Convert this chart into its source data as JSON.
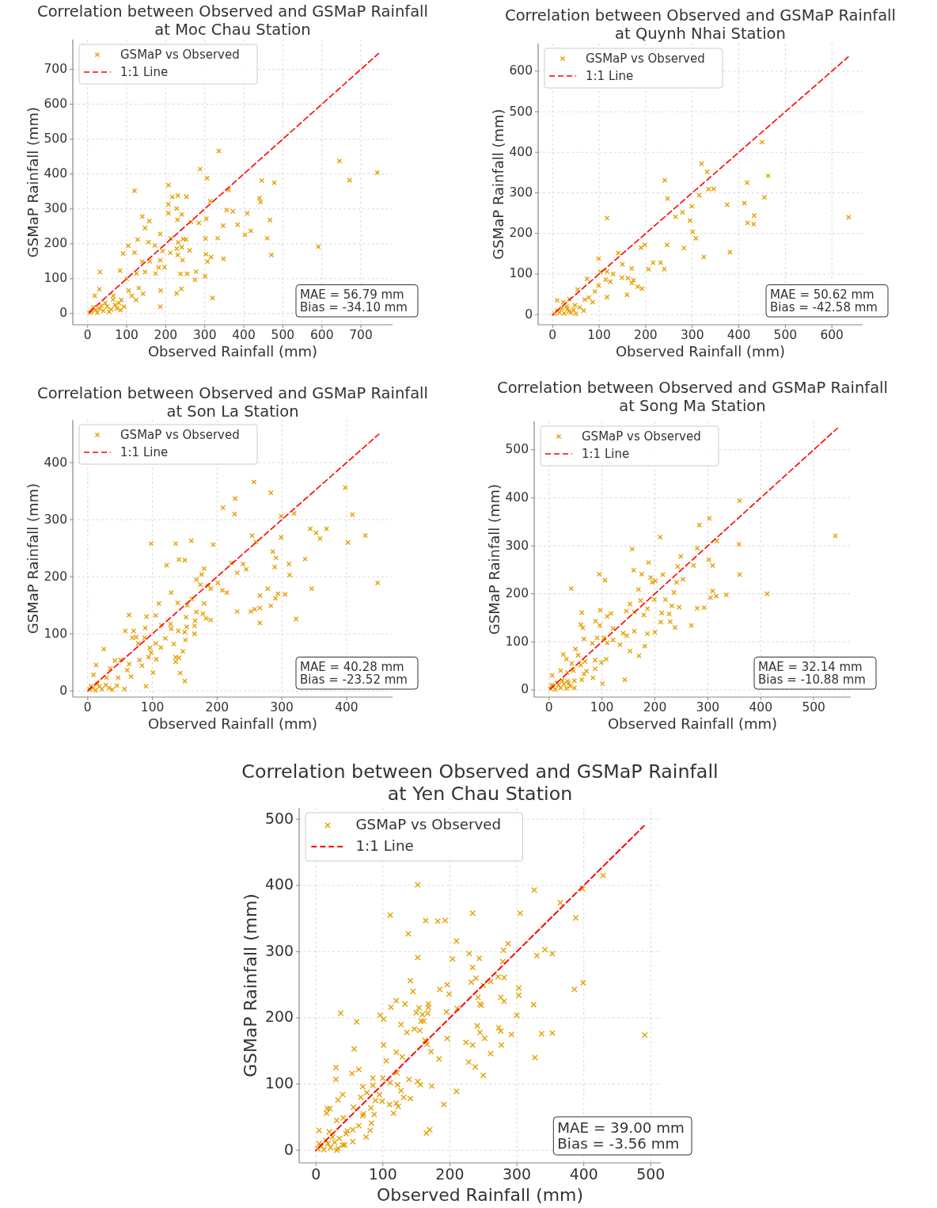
{
  "chart_data": [
    {
      "type": "scatter",
      "title": "Correlation between Observed and GSMaP Rainfall\nat Moc Chau Station",
      "xlabel": "Observed Rainfall (mm)",
      "ylabel": "GSMaP Rainfall (mm)",
      "xlim": [
        -38,
        781
      ],
      "ylim": [
        -32,
        785
      ],
      "xticks": [
        0,
        100,
        200,
        300,
        400,
        500,
        600,
        700
      ],
      "yticks": [
        0,
        100,
        200,
        300,
        400,
        500,
        600,
        700
      ],
      "grid": true,
      "legend": "top left",
      "annotations": [
        "MAE = 56.79 mm",
        "Bias = -34.10 mm"
      ],
      "series": [
        {
          "name": "GSMaP vs Observed",
          "color": "#e69f00",
          "marker": "cross",
          "x": [
            336,
            645,
            742,
            671,
            288,
            306,
            446,
            478,
            207,
            120,
            361,
            217,
            231,
            253,
            314,
            440,
            443,
            207,
            228,
            356,
            372,
            409,
            207,
            241,
            230,
            304,
            140,
            158,
            147,
            265,
            285,
            347,
            384,
            467,
            418,
            403,
            186,
            128,
            156,
            213,
            232,
            245,
            252,
            302,
            333,
            460,
            104,
            172,
            228,
            241,
            261,
            192,
            120,
            91,
            212,
            231,
            303,
            471,
            591,
            316,
            348,
            243,
            186,
            307,
            159,
            140,
            182,
            197,
            147,
            174,
            238,
            255,
            278,
            125,
            83,
            32,
            275,
            301,
            100,
            187,
            240,
            228,
            320,
            131,
            142,
            105,
            30,
            18,
            66,
            86,
            113,
            124,
            186,
            93,
            10,
            20,
            30,
            40,
            50,
            60,
            70,
            80,
            45,
            25,
            5,
            15,
            35,
            55,
            65,
            75,
            85
          ],
          "values": [
            466,
            437,
            404,
            382,
            414,
            388,
            381,
            375,
            368,
            352,
            354,
            334,
            338,
            335,
            322,
            331,
            320,
            313,
            301,
            297,
            293,
            287,
            288,
            284,
            269,
            272,
            278,
            265,
            245,
            263,
            260,
            252,
            255,
            268,
            237,
            226,
            228,
            212,
            205,
            215,
            204,
            214,
            212,
            215,
            216,
            216,
            194,
            195,
            186,
            190,
            181,
            179,
            175,
            172,
            174,
            168,
            170,
            168,
            192,
            162,
            157,
            153,
            153,
            149,
            150,
            149,
            132,
            133,
            119,
            115,
            114,
            114,
            120,
            115,
            123,
            119,
            97,
            107,
            100,
            66,
            71,
            58,
            45,
            73,
            57,
            66,
            70,
            51,
            51,
            39,
            51,
            39,
            20,
            20,
            5,
            10,
            15,
            8,
            20,
            12,
            25,
            30,
            30,
            3,
            2,
            18,
            22,
            5,
            40,
            15,
            10
          ]
        },
        {
          "name": "1:1 Line",
          "type": "line",
          "color": "#ff0000",
          "line_style": "dashed",
          "x": [
            0,
            745
          ],
          "values": [
            0,
            745
          ]
        }
      ]
    },
    {
      "type": "scatter",
      "title": "Correlation between Observed and GSMaP Rainfall\nat Quynh Nhai Station",
      "xlabel": "Observed Rainfall (mm)",
      "ylabel": "GSMaP Rainfall (mm)",
      "xlim": [
        -31,
        666
      ],
      "ylim": [
        -25,
        668
      ],
      "xticks": [
        0,
        100,
        200,
        300,
        400,
        500,
        600
      ],
      "yticks": [
        0,
        100,
        200,
        300,
        400,
        500,
        600
      ],
      "grid": true,
      "legend": "top left",
      "annotations": [
        "MAE = 50.62 mm",
        "Bias = -42.58 mm"
      ],
      "series": [
        {
          "name": "GSMaP vs Observed",
          "color": "#e69f00",
          "marker": "cross",
          "x": [
            450,
            320,
            332,
            241,
            463,
            418,
            335,
            346,
            315,
            247,
            455,
            375,
            412,
            299,
            279,
            264,
            636,
            117,
            295,
            433,
            419,
            432,
            301,
            308,
            246,
            282,
            325,
            381,
            190,
            198,
            141,
            99,
            150,
            216,
            232,
            240,
            206,
            170,
            103,
            117,
            130,
            149,
            162,
            174,
            170,
            114,
            124,
            99,
            183,
            192,
            160,
            117,
            74,
            91,
            86,
            54,
            69,
            78,
            48,
            58,
            67,
            32,
            10,
            23,
            36,
            5,
            15,
            25,
            10,
            35,
            20,
            40,
            30,
            45,
            50
          ],
          "values": [
            425,
            372,
            352,
            331,
            342,
            325,
            309,
            310,
            294,
            286,
            289,
            271,
            275,
            267,
            252,
            241,
            240,
            238,
            232,
            244,
            226,
            223,
            204,
            188,
            172,
            164,
            142,
            154,
            165,
            172,
            152,
            138,
            124,
            128,
            128,
            112,
            112,
            114,
            105,
            106,
            100,
            91,
            90,
            85,
            78,
            86,
            81,
            72,
            69,
            64,
            49,
            43,
            88,
            57,
            31,
            62,
            37,
            42,
            23,
            18,
            10,
            15,
            35,
            31,
            38,
            2,
            5,
            3,
            10,
            8,
            15,
            5,
            20,
            12,
            2
          ]
        },
        {
          "name": "1:1 Line",
          "type": "line",
          "color": "#ff0000",
          "line_style": "dashed",
          "x": [
            0,
            635
          ],
          "values": [
            0,
            635
          ]
        }
      ]
    },
    {
      "type": "scatter",
      "title": "Correlation between Observed and GSMaP Rainfall\nat Son La Station",
      "xlabel": "Observed Rainfall (mm)",
      "ylabel": "GSMaP Rainfall (mm)",
      "xlim": [
        -23,
        471
      ],
      "ylim": [
        -11,
        475
      ],
      "xticks": [
        0,
        100,
        200,
        300,
        400
      ],
      "yticks": [
        0,
        100,
        200,
        300,
        400
      ],
      "grid": true,
      "legend": "top left",
      "annotations": [
        "MAE = 40.28 mm",
        "Bias = -23.52 mm"
      ],
      "series": [
        {
          "name": "GSMaP vs Observed",
          "color": "#e69f00",
          "marker": "cross",
          "x": [
            257,
            283,
            228,
            209,
            227,
            398,
            409,
            299,
            319,
            254,
            260,
            299,
            344,
            353,
            369,
            359,
            429,
            402,
            98,
            136,
            160,
            194,
            286,
            291,
            336,
            141,
            150,
            122,
            222,
            240,
            231,
            245,
            289,
            311,
            312,
            180,
            176,
            168,
            201,
            174,
            186,
            190,
            208,
            215,
            448,
            346,
            278,
            266,
            294,
            305,
            290,
            283,
            266,
            258,
            252,
            231,
            266,
            322,
            129,
            139,
            161,
            110,
            154,
            180,
            168,
            178,
            183,
            190,
            152,
            166,
            165,
            153,
            64,
            91,
            105,
            114,
            128,
            129,
            140,
            150,
            165,
            58,
            71,
            69,
            75,
            88,
            89,
            78,
            105,
            120,
            133,
            151,
            96,
            113,
            98,
            147,
            25,
            42,
            51,
            64,
            80,
            94,
            106,
            136,
            141,
            136,
            84,
            101,
            143,
            150,
            13,
            35,
            61,
            9,
            29,
            47,
            67,
            90,
            57,
            45,
            3,
            8,
            12,
            18,
            22,
            28,
            33,
            15,
            38,
            5
          ],
          "values": [
            366,
            347,
            337,
            321,
            310,
            356,
            309,
            306,
            311,
            272,
            261,
            269,
            284,
            277,
            284,
            267,
            272,
            260,
            258,
            258,
            263,
            256,
            244,
            233,
            231,
            230,
            229,
            220,
            224,
            222,
            207,
            213,
            217,
            222,
            203,
            214,
            204,
            195,
            189,
            186,
            184,
            179,
            176,
            172,
            189,
            179,
            179,
            167,
            170,
            169,
            162,
            149,
            145,
            143,
            139,
            139,
            119,
            126,
            172,
            154,
            161,
            153,
            150,
            153,
            138,
            135,
            127,
            124,
            129,
            123,
            114,
            112,
            133,
            130,
            132,
            115,
            117,
            109,
            105,
            103,
            100,
            105,
            105,
            93,
            94,
            93,
            110,
            83,
            83,
            92,
            82,
            89,
            75,
            76,
            67,
            69,
            73,
            53,
            54,
            47,
            54,
            59,
            55,
            59,
            58,
            51,
            44,
            32,
            31,
            17,
            45,
            39,
            36,
            28,
            23,
            23,
            25,
            8,
            3,
            9,
            2,
            5,
            1,
            8,
            3,
            10,
            5,
            12,
            2,
            8
          ]
        },
        {
          "name": "1:1 Line",
          "type": "line",
          "color": "#ff0000",
          "line_style": "dashed",
          "x": [
            0,
            450
          ],
          "values": [
            0,
            450
          ]
        }
      ]
    },
    {
      "type": "scatter",
      "title": "Correlation between Observed and GSMaP Rainfall\nat Song Ma Station",
      "xlabel": "Observed Rainfall (mm)",
      "ylabel": "GSMaP Rainfall (mm)",
      "xlim": [
        -28,
        570
      ],
      "ylim": [
        -15,
        559
      ],
      "xticks": [
        0,
        100,
        200,
        300,
        400,
        500
      ],
      "yticks": [
        0,
        100,
        200,
        300,
        400,
        500
      ],
      "grid": true,
      "legend": "top left",
      "annotations": [
        "MAE = 32.14 mm",
        "Bias = -10.88 mm"
      ],
      "series": [
        {
          "name": "GSMaP vs Observed",
          "color": "#e69f00",
          "marker": "cross",
          "x": [
            360,
            303,
            284,
            541,
            210,
            317,
            359,
            157,
            280,
            249,
            302,
            309,
            273,
            243,
            188,
            160,
            175,
            215,
            360,
            95,
            106,
            192,
            201,
            195,
            241,
            253,
            42,
            169,
            236,
            309,
            305,
            316,
            335,
            412,
            153,
            173,
            199,
            220,
            232,
            246,
            186,
            97,
            62,
            146,
            117,
            110,
            161,
            179,
            213,
            227,
            280,
            293,
            211,
            229,
            238,
            269,
            60,
            64,
            88,
            96,
            121,
            140,
            161,
            186,
            200,
            147,
            91,
            104,
            121,
            134,
            66,
            82,
            110,
            153,
            170,
            181,
            50,
            27,
            55,
            68,
            87,
            99,
            108,
            33,
            43,
            60,
            22,
            35,
            46,
            71,
            87,
            66,
            83,
            62,
            48,
            101,
            143,
            6,
            37,
            48,
            3,
            8,
            12,
            18,
            22,
            28,
            33,
            15,
            40,
            5,
            25,
            35
          ],
          "values": [
            394,
            357,
            343,
            321,
            318,
            310,
            303,
            293,
            295,
            278,
            271,
            259,
            259,
            257,
            265,
            249,
            241,
            240,
            240,
            241,
            228,
            234,
            227,
            224,
            224,
            230,
            211,
            209,
            203,
            206,
            192,
            195,
            198,
            200,
            179,
            186,
            188,
            188,
            175,
            172,
            169,
            166,
            161,
            164,
            159,
            153,
            162,
            156,
            160,
            158,
            170,
            171,
            141,
            142,
            130,
            134,
            136,
            129,
            143,
            134,
            128,
            118,
            122,
            117,
            120,
            113,
            108,
            108,
            104,
            94,
            106,
            97,
            98,
            81,
            71,
            91,
            85,
            74,
            72,
            59,
            62,
            57,
            64,
            64,
            55,
            52,
            40,
            36,
            40,
            39,
            44,
            33,
            25,
            21,
            19,
            13,
            21,
            30,
            14,
            4,
            2,
            6,
            1,
            10,
            4,
            12,
            3,
            15,
            8,
            10,
            20,
            18
          ]
        },
        {
          "name": "1:1 Line",
          "type": "line",
          "color": "#ff0000",
          "line_style": "dashed",
          "x": [
            0,
            545
          ],
          "values": [
            0,
            545
          ]
        }
      ]
    },
    {
      "type": "scatter",
      "title": "Correlation between Observed and GSMaP Rainfall\nat Yen Chau Station",
      "xlabel": "Observed Rainfall (mm)",
      "ylabel": "GSMaP Rainfall (mm)",
      "xlim": [
        -25,
        515
      ],
      "ylim": [
        -19,
        517
      ],
      "xticks": [
        0,
        100,
        200,
        300,
        400,
        500
      ],
      "yticks": [
        0,
        100,
        200,
        300,
        400,
        500
      ],
      "grid": true,
      "legend": "top left",
      "annotations": [
        "MAE = 39.00 mm",
        "Bias = -3.56 mm"
      ],
      "series": [
        {
          "name": "GSMaP vs Observed",
          "color": "#e69f00",
          "marker": "cross",
          "x": [
            152,
            429,
            326,
            398,
            365,
            388,
            111,
            164,
            182,
            193,
            234,
            305,
            138,
            210,
            152,
            204,
            229,
            244,
            234,
            280,
            287,
            279,
            330,
            342,
            353,
            141,
            145,
            185,
            196,
            199,
            232,
            239,
            250,
            261,
            272,
            281,
            386,
            399,
            303,
            303,
            325,
            120,
            133,
            112,
            168,
            168,
            154,
            150,
            159,
            167,
            195,
            211,
            242,
            245,
            247,
            276,
            281,
            300,
            37,
            61,
            96,
            101,
            127,
            136,
            147,
            155,
            157,
            161,
            163,
            166,
            172,
            196,
            224,
            234,
            241,
            245,
            252,
            273,
            276,
            277,
            292,
            337,
            353,
            491,
            327,
            261,
            228,
            238,
            250,
            184,
            57,
            101,
            120,
            105,
            129,
            30,
            30,
            54,
            64,
            33,
            40,
            70,
            85,
            85,
            100,
            111,
            121,
            122,
            139,
            152,
            156,
            173,
            127,
            95,
            89,
            99,
            131,
            141,
            76,
            67,
            110,
            120,
            123,
            116,
            191,
            210,
            17,
            21,
            16,
            56,
            82,
            87,
            83,
            70,
            71,
            81,
            75,
            165,
            170,
            5,
            31,
            41,
            47,
            55,
            64,
            55,
            43,
            31,
            3,
            8,
            12,
            18,
            22,
            28,
            33,
            15,
            40,
            5,
            25,
            35,
            45,
            20
          ],
          "values": [
            401,
            415,
            393,
            395,
            374,
            351,
            355,
            347,
            346,
            347,
            358,
            358,
            327,
            316,
            291,
            289,
            297,
            290,
            276,
            302,
            312,
            285,
            294,
            303,
            297,
            256,
            240,
            243,
            250,
            236,
            254,
            260,
            249,
            255,
            262,
            261,
            243,
            253,
            245,
            234,
            220,
            226,
            221,
            216,
            221,
            216,
            215,
            208,
            205,
            207,
            209,
            214,
            231,
            221,
            219,
            231,
            225,
            204,
            207,
            194,
            204,
            198,
            190,
            178,
            183,
            181,
            195,
            195,
            166,
            160,
            149,
            169,
            163,
            159,
            188,
            178,
            169,
            185,
            180,
            159,
            175,
            176,
            177,
            174,
            140,
            146,
            133,
            126,
            113,
            138,
            153,
            159,
            148,
            135,
            141,
            125,
            107,
            116,
            122,
            76,
            84,
            96,
            109,
            98,
            109,
            102,
            117,
            99,
            107,
            104,
            99,
            97,
            90,
            84,
            75,
            74,
            80,
            78,
            87,
            80,
            69,
            71,
            66,
            56,
            69,
            89,
            63,
            63,
            56,
            65,
            64,
            54,
            41,
            52,
            55,
            30,
            20,
            26,
            31,
            30,
            45,
            49,
            29,
            31,
            37,
            13,
            8,
            0,
            2,
            6,
            1,
            10,
            4,
            12,
            3,
            15,
            8,
            10,
            20,
            18,
            25,
            28
          ]
        },
        {
          "name": "1:1 Line",
          "type": "line",
          "color": "#ff0000",
          "line_style": "dashed",
          "x": [
            0,
            490
          ],
          "values": [
            0,
            490
          ]
        }
      ]
    }
  ]
}
